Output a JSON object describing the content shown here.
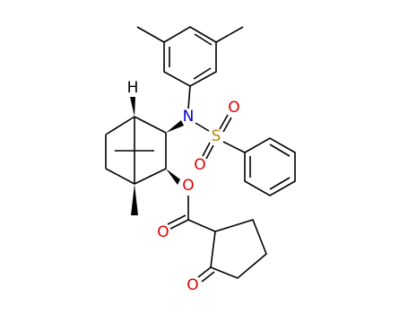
{
  "atoms": {
    "hydrogen": "H",
    "nitrogen": "N",
    "sulfur": "S",
    "sulfonyl_oxygen_top": "O",
    "sulfonyl_oxygen_bottom": "O",
    "ester_oxygen": "O",
    "carbonyl_oxygen": "O",
    "ketone_oxygen": "O"
  }
}
